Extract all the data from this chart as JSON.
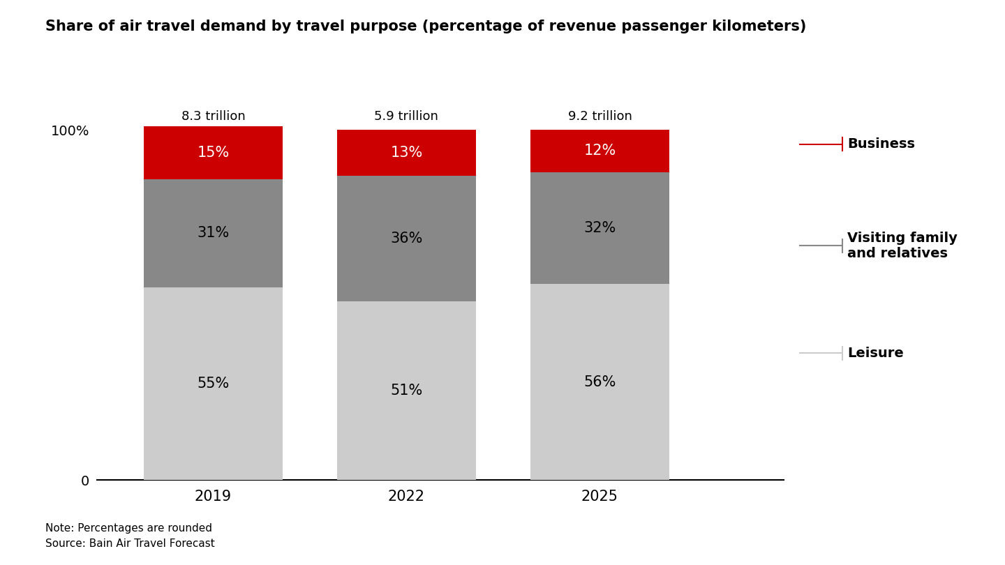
{
  "title": "Share of air travel demand by travel purpose (percentage of revenue passenger kilometers)",
  "years": [
    "2019",
    "2022",
    "2025"
  ],
  "totals": [
    "8.3 trillion",
    "5.9 trillion",
    "9.2 trillion"
  ],
  "leisure": [
    55,
    51,
    56
  ],
  "visiting": [
    31,
    36,
    32
  ],
  "business": [
    15,
    13,
    12
  ],
  "leisure_color": "#cccccc",
  "visiting_color": "#888888",
  "business_color": "#cc0000",
  "leisure_label": "Leisure",
  "visiting_label": "Visiting family\nand relatives",
  "business_label": "Business",
  "note": "Note: Percentages are rounded\nSource: Bain Air Travel Forecast",
  "bar_width": 0.72,
  "background_color": "#ffffff",
  "title_fontsize": 15,
  "label_fontsize": 14,
  "legend_fontsize": 14,
  "note_fontsize": 11,
  "total_fontsize": 13,
  "pct_fontsize": 15
}
